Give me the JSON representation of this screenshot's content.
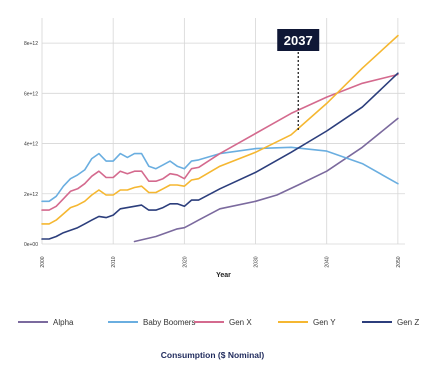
{
  "chart_data": {
    "type": "line",
    "title": "Consumption ($ Nominal)",
    "xlabel": "Year",
    "ylabel": "",
    "xlim": [
      2000,
      2051
    ],
    "ylim": [
      0,
      9000000000000.0
    ],
    "x_ticks": [
      2000,
      2010,
      2020,
      2030,
      2040,
      2050
    ],
    "y_ticks": [
      {
        "value": 0,
        "label": "0e+00"
      },
      {
        "value": 2000000000000.0,
        "label": "2e+12"
      },
      {
        "value": 4000000000000.0,
        "label": "4e+12"
      },
      {
        "value": 6000000000000.0,
        "label": "6e+12"
      },
      {
        "value": 8000000000000.0,
        "label": "8e+12"
      }
    ],
    "grid": true,
    "legend_position": "bottom",
    "annotation": {
      "text": "2037",
      "x": 2036
    },
    "series": [
      {
        "name": "Alpha",
        "color": "#7b6a9e",
        "points": [
          [
            2013,
            100000000000.0
          ],
          [
            2016,
            300000000000.0
          ],
          [
            2019,
            600000000000.0
          ],
          [
            2020,
            650000000000.0
          ],
          [
            2021,
            800000000000.0
          ],
          [
            2022,
            950000000000.0
          ],
          [
            2025,
            1400000000000.0
          ],
          [
            2030,
            1700000000000.0
          ],
          [
            2033,
            1950000000000.0
          ],
          [
            2036,
            2350000000000.0
          ],
          [
            2040,
            2900000000000.0
          ],
          [
            2045,
            3850000000000.0
          ],
          [
            2050,
            5000000000000.0
          ]
        ]
      },
      {
        "name": "Baby Boomers",
        "color": "#6aaee0",
        "points": [
          [
            2000,
            1700000000000.0
          ],
          [
            2001,
            1700000000000.0
          ],
          [
            2002,
            1900000000000.0
          ],
          [
            2003,
            2300000000000.0
          ],
          [
            2004,
            2600000000000.0
          ],
          [
            2005,
            2750000000000.0
          ],
          [
            2006,
            2950000000000.0
          ],
          [
            2007,
            3400000000000.0
          ],
          [
            2008,
            3600000000000.0
          ],
          [
            2009,
            3300000000000.0
          ],
          [
            2010,
            3300000000000.0
          ],
          [
            2011,
            3600000000000.0
          ],
          [
            2012,
            3450000000000.0
          ],
          [
            2013,
            3600000000000.0
          ],
          [
            2014,
            3600000000000.0
          ],
          [
            2015,
            3100000000000.0
          ],
          [
            2016,
            3000000000000.0
          ],
          [
            2017,
            3150000000000.0
          ],
          [
            2018,
            3300000000000.0
          ],
          [
            2019,
            3100000000000.0
          ],
          [
            2020,
            3000000000000.0
          ],
          [
            2021,
            3300000000000.0
          ],
          [
            2022,
            3350000000000.0
          ],
          [
            2025,
            3600000000000.0
          ],
          [
            2030,
            3800000000000.0
          ],
          [
            2035,
            3850000000000.0
          ],
          [
            2040,
            3700000000000.0
          ],
          [
            2045,
            3200000000000.0
          ],
          [
            2050,
            2400000000000.0
          ]
        ]
      },
      {
        "name": "Gen X",
        "color": "#d46a8e",
        "points": [
          [
            2000,
            1350000000000.0
          ],
          [
            2001,
            1350000000000.0
          ],
          [
            2002,
            1500000000000.0
          ],
          [
            2003,
            1800000000000.0
          ],
          [
            2004,
            2100000000000.0
          ],
          [
            2005,
            2200000000000.0
          ],
          [
            2006,
            2400000000000.0
          ],
          [
            2007,
            2700000000000.0
          ],
          [
            2008,
            2900000000000.0
          ],
          [
            2009,
            2650000000000.0
          ],
          [
            2010,
            2650000000000.0
          ],
          [
            2011,
            2900000000000.0
          ],
          [
            2012,
            2800000000000.0
          ],
          [
            2013,
            2900000000000.0
          ],
          [
            2014,
            2900000000000.0
          ],
          [
            2015,
            2500000000000.0
          ],
          [
            2016,
            2500000000000.0
          ],
          [
            2017,
            2600000000000.0
          ],
          [
            2018,
            2800000000000.0
          ],
          [
            2019,
            2750000000000.0
          ],
          [
            2020,
            2600000000000.0
          ],
          [
            2021,
            3000000000000.0
          ],
          [
            2022,
            3050000000000.0
          ],
          [
            2025,
            3600000000000.0
          ],
          [
            2030,
            4400000000000.0
          ],
          [
            2035,
            5200000000000.0
          ],
          [
            2040,
            5850000000000.0
          ],
          [
            2045,
            6400000000000.0
          ],
          [
            2050,
            6750000000000.0
          ]
        ]
      },
      {
        "name": "Gen Y",
        "color": "#f5b731",
        "points": [
          [
            2000,
            800000000000.0
          ],
          [
            2001,
            800000000000.0
          ],
          [
            2002,
            950000000000.0
          ],
          [
            2003,
            1200000000000.0
          ],
          [
            2004,
            1450000000000.0
          ],
          [
            2005,
            1550000000000.0
          ],
          [
            2006,
            1700000000000.0
          ],
          [
            2007,
            1950000000000.0
          ],
          [
            2008,
            2150000000000.0
          ],
          [
            2009,
            1950000000000.0
          ],
          [
            2010,
            1950000000000.0
          ],
          [
            2011,
            2150000000000.0
          ],
          [
            2012,
            2150000000000.0
          ],
          [
            2013,
            2250000000000.0
          ],
          [
            2014,
            2300000000000.0
          ],
          [
            2015,
            2050000000000.0
          ],
          [
            2016,
            2050000000000.0
          ],
          [
            2017,
            2200000000000.0
          ],
          [
            2018,
            2350000000000.0
          ],
          [
            2019,
            2350000000000.0
          ],
          [
            2020,
            2300000000000.0
          ],
          [
            2021,
            2550000000000.0
          ],
          [
            2022,
            2600000000000.0
          ],
          [
            2025,
            3100000000000.0
          ],
          [
            2030,
            3650000000000.0
          ],
          [
            2035,
            4350000000000.0
          ],
          [
            2040,
            5600000000000.0
          ],
          [
            2045,
            7000000000000.0
          ],
          [
            2050,
            8300000000000.0
          ]
        ]
      },
      {
        "name": "Gen Z",
        "color": "#2c3e7c",
        "points": [
          [
            2000,
            200000000000.0
          ],
          [
            2001,
            200000000000.0
          ],
          [
            2002,
            300000000000.0
          ],
          [
            2003,
            450000000000.0
          ],
          [
            2004,
            550000000000.0
          ],
          [
            2005,
            650000000000.0
          ],
          [
            2006,
            800000000000.0
          ],
          [
            2007,
            950000000000.0
          ],
          [
            2008,
            1100000000000.0
          ],
          [
            2009,
            1050000000000.0
          ],
          [
            2010,
            1150000000000.0
          ],
          [
            2011,
            1400000000000.0
          ],
          [
            2012,
            1450000000000.0
          ],
          [
            2013,
            1500000000000.0
          ],
          [
            2014,
            1550000000000.0
          ],
          [
            2015,
            1350000000000.0
          ],
          [
            2016,
            1350000000000.0
          ],
          [
            2017,
            1450000000000.0
          ],
          [
            2018,
            1600000000000.0
          ],
          [
            2019,
            1600000000000.0
          ],
          [
            2020,
            1500000000000.0
          ],
          [
            2021,
            1750000000000.0
          ],
          [
            2022,
            1750000000000.0
          ],
          [
            2025,
            2200000000000.0
          ],
          [
            2030,
            2850000000000.0
          ],
          [
            2035,
            3650000000000.0
          ],
          [
            2040,
            4500000000000.0
          ],
          [
            2045,
            5450000000000.0
          ],
          [
            2050,
            6800000000000.0
          ]
        ]
      }
    ]
  }
}
